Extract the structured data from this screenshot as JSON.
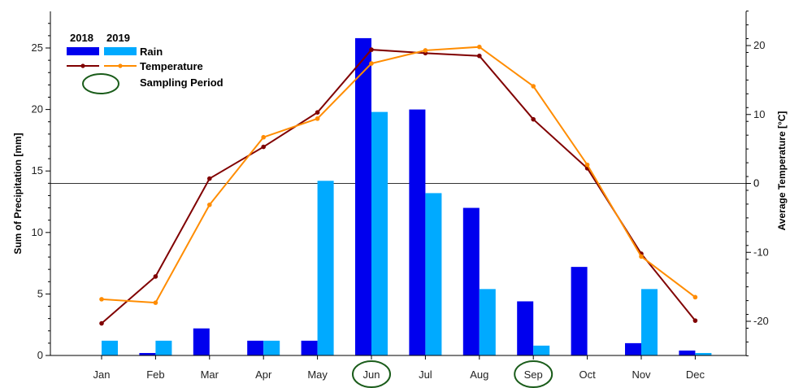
{
  "chart_data": {
    "type": "bar+line",
    "categories": [
      "Jan",
      "Feb",
      "Mar",
      "Apr",
      "May",
      "Jun",
      "Jul",
      "Aug",
      "Sep",
      "Oct",
      "Nov",
      "Dec"
    ],
    "left_axis": {
      "label": "Sum of Precipitation [mm]",
      "range": [
        0,
        27.5
      ],
      "ticks": [
        0,
        5,
        10,
        15,
        20,
        25
      ]
    },
    "right_axis": {
      "label": "Average Temperature [°C]",
      "range": [
        -25,
        25
      ],
      "ticks": [
        -20,
        -10,
        0,
        10,
        20
      ]
    },
    "rain": [
      {
        "name": "2018",
        "color": "#0000ee",
        "values": [
          0,
          0.2,
          2.2,
          1.2,
          1.2,
          25.8,
          20.0,
          12.0,
          4.4,
          7.2,
          1.0,
          0.4
        ]
      },
      {
        "name": "2019",
        "color": "#00aaff",
        "values": [
          1.2,
          1.2,
          0,
          1.2,
          14.2,
          19.8,
          13.2,
          5.4,
          0.8,
          0,
          5.4,
          0.2
        ]
      }
    ],
    "temperature": [
      {
        "name": "2018",
        "color": "#800000",
        "values": [
          -20.3,
          -13.5,
          0.7,
          5.3,
          10.3,
          19.4,
          18.9,
          18.5,
          9.3,
          2.2,
          -10.2,
          -19.9
        ]
      },
      {
        "name": "2019",
        "color": "#ff8c00",
        "values": [
          -16.8,
          -17.3,
          -3.1,
          6.7,
          9.4,
          17.4,
          19.3,
          19.8,
          14.1,
          2.7,
          -10.6,
          -16.5
        ]
      }
    ],
    "reference_line": 0,
    "sampling_periods": [
      "Jun",
      "Sep"
    ],
    "legend": {
      "year1": "2018",
      "year2": "2019",
      "rain_label": "Rain",
      "temperature_label": "Temperature",
      "sampling_label": "Sampling Period",
      "placement": "top-left"
    },
    "sampling_color": "#1a5c1a"
  }
}
